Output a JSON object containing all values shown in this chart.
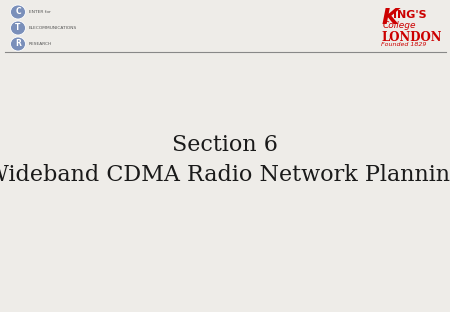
{
  "background_color": "#eeece8",
  "title_line1": "Section 6",
  "title_line2": "Wideband CDMA Radio Network Planning",
  "title_color": "#1a1a1a",
  "title_fontsize1": 16,
  "title_fontsize2": 16,
  "header_line_color": "#888888",
  "ctr_letters": [
    "C",
    "T",
    "R"
  ],
  "ctr_bubble_color": "#7a8fba",
  "ctr_text": [
    "ENTER for",
    "ELECOMMUNICATIONS",
    "RESEARCH"
  ],
  "ctr_text_color": "#555555",
  "kings_color_main": "#cc0000"
}
